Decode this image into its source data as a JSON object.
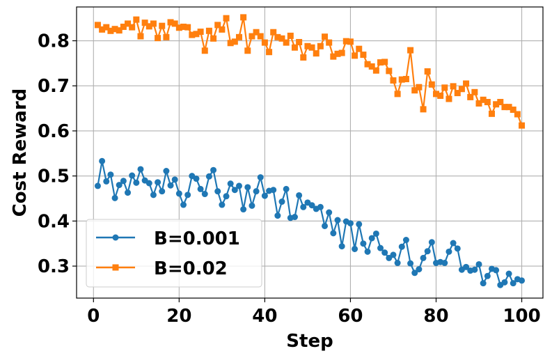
{
  "chart_data": {
    "type": "line",
    "xlabel": "Step",
    "ylabel": "Cost Reward",
    "xlim": [
      -3.95,
      104.95
    ],
    "ylim": [
      0.229,
      0.875
    ],
    "xticks": [
      0,
      20,
      40,
      60,
      80,
      100
    ],
    "xtick_labels": [
      "0",
      "20",
      "40",
      "60",
      "80",
      "100"
    ],
    "yticks": [
      0.3,
      0.4,
      0.5,
      0.6,
      0.7,
      0.8
    ],
    "ytick_labels": [
      "0.3",
      "0.4",
      "0.5",
      "0.6",
      "0.7",
      "0.8"
    ],
    "grid": true,
    "legend_position": "lower-left",
    "x": [
      1,
      2,
      3,
      4,
      5,
      6,
      7,
      8,
      9,
      10,
      11,
      12,
      13,
      14,
      15,
      16,
      17,
      18,
      19,
      20,
      21,
      22,
      23,
      24,
      25,
      26,
      27,
      28,
      29,
      30,
      31,
      32,
      33,
      34,
      35,
      36,
      37,
      38,
      39,
      40,
      41,
      42,
      43,
      44,
      45,
      46,
      47,
      48,
      49,
      50,
      51,
      52,
      53,
      54,
      55,
      56,
      57,
      58,
      59,
      60,
      61,
      62,
      63,
      64,
      65,
      66,
      67,
      68,
      69,
      70,
      71,
      72,
      73,
      74,
      75,
      76,
      77,
      78,
      79,
      80,
      81,
      82,
      83,
      84,
      85,
      86,
      87,
      88,
      89,
      90,
      91,
      92,
      93,
      94,
      95,
      96,
      97,
      98,
      99,
      100
    ],
    "series": [
      {
        "name": "B=0.001",
        "color": "#1f77b4",
        "marker": "circle",
        "values": [
          0.478,
          0.533,
          0.488,
          0.503,
          0.451,
          0.48,
          0.489,
          0.463,
          0.501,
          0.485,
          0.515,
          0.49,
          0.484,
          0.458,
          0.486,
          0.466,
          0.511,
          0.479,
          0.492,
          0.461,
          0.436,
          0.458,
          0.5,
          0.494,
          0.471,
          0.46,
          0.499,
          0.513,
          0.466,
          0.436,
          0.455,
          0.483,
          0.469,
          0.478,
          0.426,
          0.475,
          0.434,
          0.466,
          0.497,
          0.456,
          0.467,
          0.469,
          0.412,
          0.443,
          0.471,
          0.407,
          0.409,
          0.457,
          0.431,
          0.441,
          0.435,
          0.427,
          0.431,
          0.389,
          0.419,
          0.373,
          0.402,
          0.344,
          0.399,
          0.395,
          0.338,
          0.393,
          0.35,
          0.332,
          0.362,
          0.372,
          0.34,
          0.33,
          0.318,
          0.325,
          0.307,
          0.343,
          0.358,
          0.306,
          0.285,
          0.293,
          0.318,
          0.333,
          0.353,
          0.307,
          0.309,
          0.307,
          0.332,
          0.351,
          0.339,
          0.292,
          0.298,
          0.29,
          0.292,
          0.304,
          0.262,
          0.278,
          0.294,
          0.291,
          0.258,
          0.264,
          0.283,
          0.262,
          0.271,
          0.268
        ]
      },
      {
        "name": "B=0.02",
        "color": "#ff7f0e",
        "marker": "square",
        "values": [
          0.835,
          0.825,
          0.83,
          0.822,
          0.826,
          0.823,
          0.831,
          0.838,
          0.83,
          0.847,
          0.81,
          0.84,
          0.832,
          0.838,
          0.806,
          0.833,
          0.808,
          0.841,
          0.838,
          0.829,
          0.831,
          0.83,
          0.813,
          0.815,
          0.82,
          0.778,
          0.822,
          0.805,
          0.835,
          0.825,
          0.85,
          0.795,
          0.798,
          0.808,
          0.852,
          0.778,
          0.81,
          0.819,
          0.81,
          0.796,
          0.775,
          0.819,
          0.808,
          0.805,
          0.796,
          0.811,
          0.785,
          0.797,
          0.763,
          0.788,
          0.785,
          0.772,
          0.788,
          0.809,
          0.796,
          0.765,
          0.771,
          0.773,
          0.799,
          0.798,
          0.767,
          0.782,
          0.769,
          0.748,
          0.743,
          0.734,
          0.752,
          0.753,
          0.733,
          0.712,
          0.682,
          0.714,
          0.715,
          0.779,
          0.69,
          0.697,
          0.648,
          0.732,
          0.703,
          0.682,
          0.678,
          0.696,
          0.671,
          0.699,
          0.684,
          0.693,
          0.705,
          0.675,
          0.686,
          0.661,
          0.669,
          0.664,
          0.638,
          0.659,
          0.664,
          0.653,
          0.653,
          0.647,
          0.637,
          0.612
        ]
      }
    ]
  }
}
